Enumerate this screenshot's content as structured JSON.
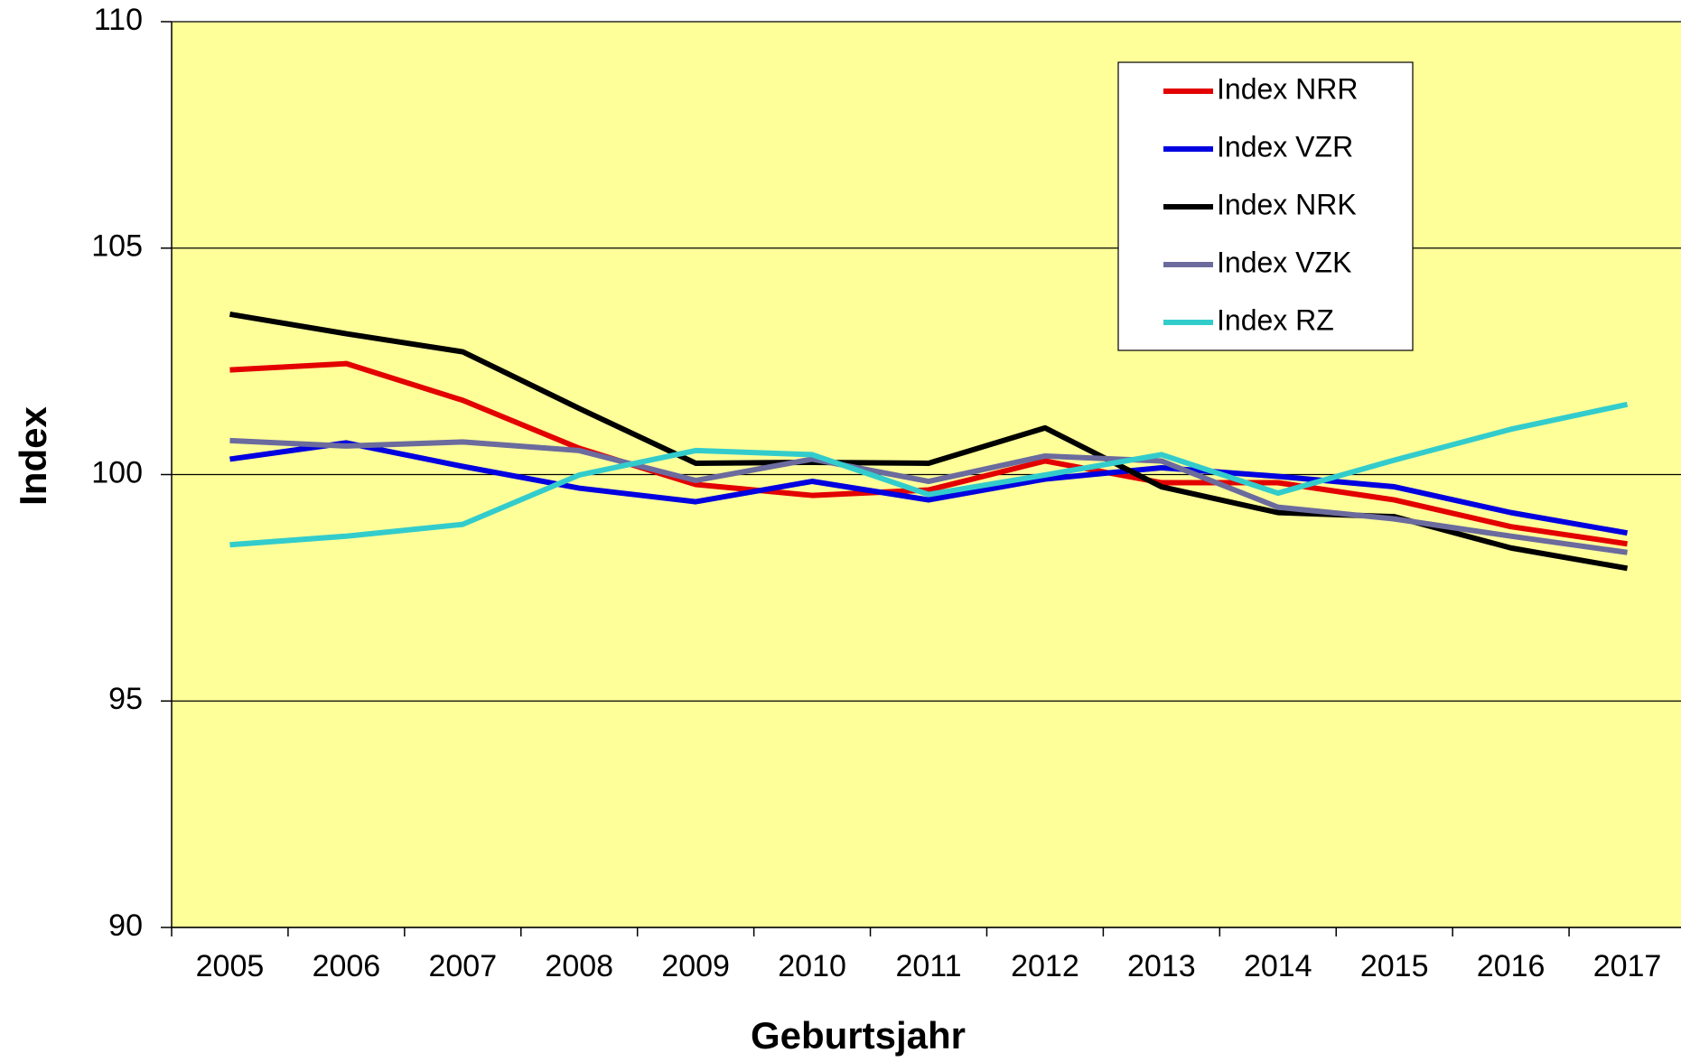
{
  "chart_data": {
    "type": "line",
    "x_label": "Geburtsjahr",
    "y_label": "Index",
    "categories": [
      "2005",
      "2006",
      "2007",
      "2008",
      "2009",
      "2010",
      "2011",
      "2012",
      "2013",
      "2014",
      "2015",
      "2016",
      "2017"
    ],
    "series": [
      {
        "name": "Index NRR",
        "color": "#e30000",
        "values": [
          102.31,
          102.45,
          101.64,
          100.58,
          99.78,
          99.54,
          99.66,
          100.3,
          99.82,
          99.82,
          99.44,
          98.85,
          98.47
        ]
      },
      {
        "name": "Index VZR",
        "color": "#0000e0",
        "values": [
          100.34,
          100.7,
          100.18,
          99.7,
          99.4,
          99.85,
          99.44,
          99.9,
          100.15,
          99.96,
          99.73,
          99.16,
          98.71
        ]
      },
      {
        "name": "Index NRK",
        "color": "#000000",
        "values": [
          103.54,
          103.11,
          102.71,
          101.46,
          100.25,
          100.27,
          100.25,
          101.03,
          99.73,
          99.16,
          99.07,
          98.38,
          97.93
        ]
      },
      {
        "name": "Index VZK",
        "color": "#6b6b9e",
        "values": [
          100.75,
          100.63,
          100.72,
          100.53,
          99.87,
          100.34,
          99.85,
          100.41,
          100.3,
          99.28,
          99.02,
          98.64,
          98.28
        ]
      },
      {
        "name": "Index RZ",
        "color": "#33cccc",
        "values": [
          98.45,
          98.64,
          98.9,
          99.99,
          100.53,
          100.44,
          99.56,
          99.99,
          100.44,
          99.59,
          100.32,
          101.0,
          101.55
        ]
      }
    ],
    "ylim": [
      90,
      110
    ],
    "yticks": [
      90,
      95,
      100,
      105,
      110
    ],
    "grid": true,
    "plot_background": "#ffff99",
    "legend_position": "top-right"
  }
}
